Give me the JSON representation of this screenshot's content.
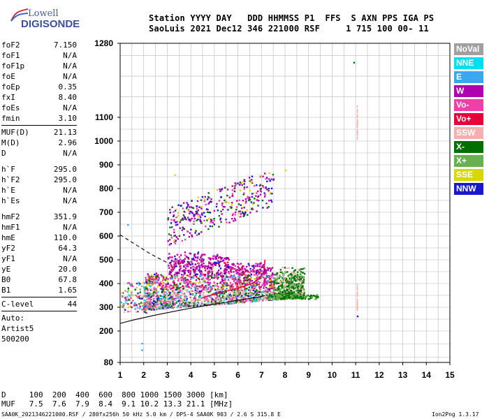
{
  "logo": {
    "line1": "Lowell",
    "line2": "DIGISONDE"
  },
  "header": {
    "line1": "Station YYYY DAY   DDD HHMMSS P1  FFS  S AXN PPS IGA PS",
    "line2": "SaoLuis 2021 Dec12 346 221000 RSF     1 715 100 00- 11"
  },
  "params": {
    "group1": [
      {
        "name": "foF2",
        "value": "7.150"
      },
      {
        "name": "foF1",
        "value": "N/A"
      },
      {
        "name": "foF1p",
        "value": "N/A"
      },
      {
        "name": "foE",
        "value": "N/A"
      },
      {
        "name": "foEp",
        "value": "0.35"
      },
      {
        "name": "fxI",
        "value": "8.40"
      },
      {
        "name": "foEs",
        "value": "N/A"
      },
      {
        "name": "fmin",
        "value": "3.10"
      }
    ],
    "group2": [
      {
        "name": "MUF(D)",
        "value": "21.13"
      },
      {
        "name": "M(D)",
        "value": "2.96"
      },
      {
        "name": "D",
        "value": "N/A"
      }
    ],
    "group3": [
      {
        "name": "h`F",
        "value": "295.0"
      },
      {
        "name": "h`F2",
        "value": "295.0"
      },
      {
        "name": "h`E",
        "value": "N/A"
      },
      {
        "name": "h`Es",
        "value": "N/A"
      }
    ],
    "group4": [
      {
        "name": "hmF2",
        "value": "351.9"
      },
      {
        "name": "hmF1",
        "value": "N/A"
      },
      {
        "name": "hmE",
        "value": "110.0"
      },
      {
        "name": "yF2",
        "value": "64.3"
      },
      {
        "name": "yF1",
        "value": "N/A"
      },
      {
        "name": "yE",
        "value": "20.0"
      },
      {
        "name": "B0",
        "value": "67.8"
      },
      {
        "name": "B1",
        "value": "1.65"
      }
    ],
    "clevel": {
      "name": "C-level",
      "value": "44"
    },
    "auto": [
      "Auto:",
      "Artist5",
      "500200"
    ]
  },
  "legend": [
    {
      "label": "NoVal",
      "color": "#a0a0a0"
    },
    {
      "label": "NNE",
      "color": "#00e0f0"
    },
    {
      "label": "E",
      "color": "#3aa8f0"
    },
    {
      "label": "W",
      "color": "#b000b0"
    },
    {
      "label": "Vo-",
      "color": "#f040a8"
    },
    {
      "label": "Vo+",
      "color": "#e8003c"
    },
    {
      "label": "SSW",
      "color": "#f4b0b0"
    },
    {
      "label": "X-",
      "color": "#007000"
    },
    {
      "label": "X+",
      "color": "#68b050"
    },
    {
      "label": "SSE",
      "color": "#d8d800"
    },
    {
      "label": "NNW",
      "color": "#1818d0"
    }
  ],
  "footer": {
    "line1": "D     100  200  400  600  800 1000 1500 3000 [km]",
    "line2": "MUF   7.5  7.6  7.9  8.4  9.1 10.2 13.3 21.1 [MHz]",
    "line3": "SAA0K_2021346221000.RSF / 280fx256h 50 kHz 5.0 km / DPS-4 SAA0K 903 / 2.6 S 315.8 E",
    "version": "Ion2Png 1.3.17"
  },
  "chart_data": {
    "type": "scatter",
    "title": "",
    "xlabel": "",
    "ylabel": "",
    "xlim": [
      1,
      15
    ],
    "ylim": [
      80,
      1280
    ],
    "grid": true,
    "x_ticks": [
      1,
      2,
      3,
      4,
      5,
      6,
      7,
      8,
      9,
      10,
      11,
      12,
      13,
      14,
      15
    ],
    "y_ticks": [
      80,
      200,
      300,
      400,
      500,
      600,
      700,
      800,
      900,
      1000,
      1100,
      1280
    ],
    "y_ticks_major_labels": [
      80,
      200,
      300,
      400,
      500,
      600,
      700,
      800,
      900,
      1000,
      1100,
      1280
    ],
    "traces": [
      {
        "name": "profile",
        "style": "solid",
        "x": [
          1.0,
          1.5,
          2.0,
          2.5,
          3.0,
          3.5,
          4.0,
          4.5,
          5.0,
          5.5,
          6.0,
          6.5,
          7.0,
          7.15
        ],
        "y": [
          232,
          245,
          256,
          267,
          277,
          287,
          296,
          305,
          313,
          321,
          330,
          337,
          345,
          350
        ]
      },
      {
        "name": "profile-dashed",
        "style": "dashed",
        "x": [
          1.0,
          1.4,
          1.8,
          2.2,
          2.6,
          3.0
        ],
        "y": [
          605,
          580,
          555,
          530,
          508,
          488
        ]
      },
      {
        "name": "trace",
        "style": "solid",
        "x": [
          4.5,
          5.0,
          5.5,
          6.0,
          6.3,
          6.6,
          6.9,
          7.1,
          7.15
        ],
        "y": [
          340,
          355,
          368,
          380,
          390,
          400,
          420,
          450,
          500
        ]
      }
    ],
    "echo_regions": [
      {
        "label": "F-region echoes",
        "x": [
          2.2,
          9.0
        ],
        "y": [
          300,
          540
        ]
      },
      {
        "label": "second hop echoes",
        "x": [
          3.0,
          7.6
        ],
        "y": [
          560,
          880
        ]
      },
      {
        "label": "spread echoes near 11 MHz",
        "x": [
          11.0,
          11.1
        ],
        "y": [
          260,
          1120
        ]
      }
    ]
  }
}
